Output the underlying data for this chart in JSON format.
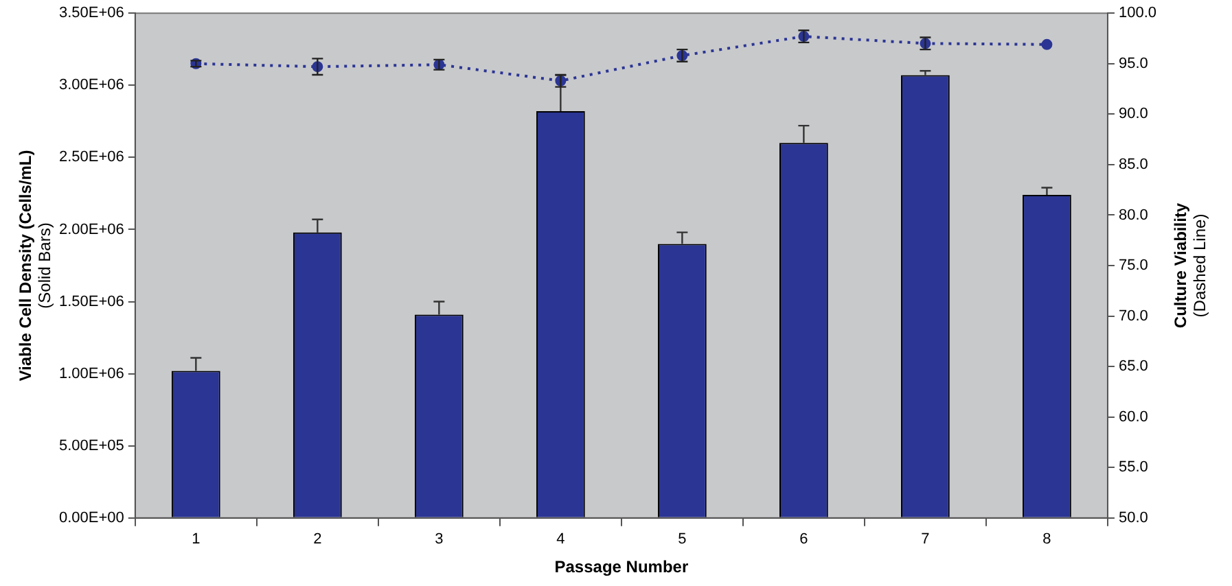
{
  "chart_data": {
    "type": "bar",
    "xlabel": "Passage Number",
    "ylabel": "Viable Cell Density (Cells/mL)\n(Solid Bars)",
    "y2label": "Culture Viability\n(Dashed Line)",
    "categories": [
      "1",
      "2",
      "3",
      "4",
      "5",
      "6",
      "7",
      "8"
    ],
    "series": [
      {
        "color": "#2b3594",
        "values": [
          1020000,
          1980000,
          1410000,
          2820000,
          1900000,
          2600000,
          3070000,
          2240000
        ],
        "errors": [
          [
            1020000,
            1110000
          ],
          [
            1980000,
            2070000
          ],
          [
            1410000,
            1500000
          ],
          [
            2820000,
            3070000
          ],
          [
            1900000,
            1980000
          ],
          [
            2600000,
            2720000
          ],
          [
            3070000,
            3100000
          ],
          [
            2240000,
            2290000
          ]
        ]
      },
      {
        "type": "line",
        "axis": "y2",
        "color": "#2b3594",
        "marker": "circle",
        "line_style": "dotted",
        "values": [
          95.0,
          94.7,
          94.9,
          93.3,
          95.8,
          97.7,
          97.0,
          96.9
        ],
        "errors": [
          0.3,
          0.8,
          0.5,
          0.6,
          0.6,
          0.6,
          0.6,
          null
        ]
      }
    ],
    "ylim": [
      0,
      3500000
    ],
    "yticks": [
      {
        "value": 0,
        "label": "0.00E+00"
      },
      {
        "value": 500000,
        "label": "5.00E+05"
      },
      {
        "value": 1000000,
        "label": "1.00E+06"
      },
      {
        "value": 1500000,
        "label": "1.50E+06"
      },
      {
        "value": 2000000,
        "label": "2.00E+06"
      },
      {
        "value": 2500000,
        "label": "2.50E+06"
      },
      {
        "value": 3000000,
        "label": "3.00E+06"
      },
      {
        "value": 3500000,
        "label": "3.50E+06"
      }
    ],
    "y2lim": [
      50,
      100
    ],
    "y2ticks": [
      {
        "value": 50,
        "label": "50.0"
      },
      {
        "value": 55,
        "label": "55.0"
      },
      {
        "value": 60,
        "label": "60.0"
      },
      {
        "value": 65,
        "label": "65.0"
      },
      {
        "value": 70,
        "label": "70.0"
      },
      {
        "value": 75,
        "label": "75.0"
      },
      {
        "value": 80,
        "label": "80.0"
      },
      {
        "value": 85,
        "label": "85.0"
      },
      {
        "value": 90,
        "label": "90.0"
      },
      {
        "value": 95,
        "label": "95.0"
      },
      {
        "value": 100,
        "label": "100.0"
      }
    ],
    "grid": false,
    "legend": false
  }
}
